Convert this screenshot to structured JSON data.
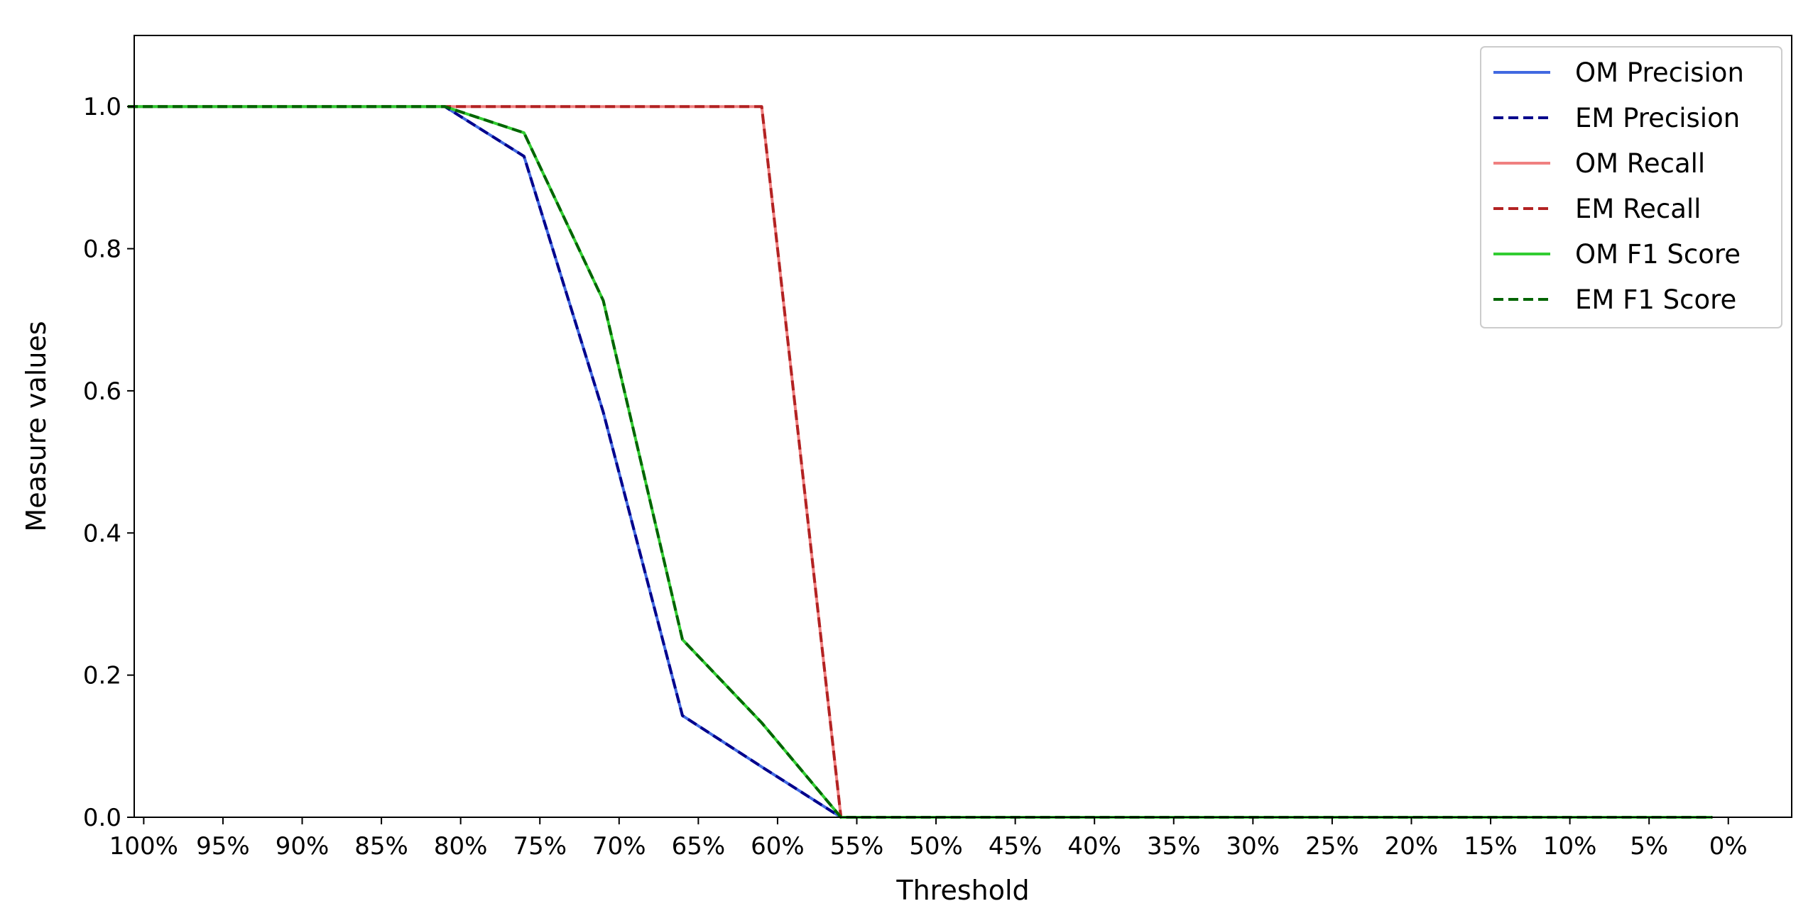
{
  "chart_data": {
    "type": "line",
    "title": "",
    "xlabel": "Threshold",
    "ylabel": "Measure values",
    "x_tick_labels": [
      "100%",
      "95%",
      "90%",
      "85%",
      "80%",
      "75%",
      "70%",
      "65%",
      "60%",
      "55%",
      "50%",
      "45%",
      "40%",
      "35%",
      "30%",
      "25%",
      "20%",
      "15%",
      "10%",
      "5%",
      "0%"
    ],
    "x_ticks": [
      100,
      95,
      90,
      85,
      80,
      75,
      70,
      65,
      60,
      55,
      50,
      45,
      40,
      35,
      30,
      25,
      20,
      15,
      10,
      5,
      0
    ],
    "xlim": [
      100.6,
      -4
    ],
    "y_ticks": [
      0.0,
      0.2,
      0.4,
      0.6,
      0.8,
      1.0
    ],
    "y_tick_labels": [
      "0.0",
      "0.2",
      "0.4",
      "0.6",
      "0.8",
      "1.0"
    ],
    "ylim": [
      0.0,
      1.1
    ],
    "x": [
      101,
      96,
      91,
      86,
      81,
      76,
      71,
      66,
      61,
      56,
      51,
      46,
      41,
      36,
      31,
      26,
      21,
      16,
      11,
      6,
      1
    ],
    "series": [
      {
        "name": "OM Precision",
        "color": "#4169e1",
        "style": "solid",
        "values": [
          1,
          1,
          1,
          1,
          1,
          0.93,
          0.57,
          0.143,
          0.071,
          0,
          0,
          0,
          0,
          0,
          0,
          0,
          0,
          0,
          0,
          0,
          0
        ]
      },
      {
        "name": "EM Precision",
        "color": "#00008b",
        "style": "dashed",
        "values": [
          1,
          1,
          1,
          1,
          1,
          0.93,
          0.57,
          0.143,
          0.071,
          0,
          0,
          0,
          0,
          0,
          0,
          0,
          0,
          0,
          0,
          0,
          0
        ]
      },
      {
        "name": "OM Recall",
        "color": "#f08080",
        "style": "solid",
        "values": [
          1,
          1,
          1,
          1,
          1,
          1,
          1,
          1,
          1,
          0,
          0,
          0,
          0,
          0,
          0,
          0,
          0,
          0,
          0,
          0,
          0
        ]
      },
      {
        "name": "EM Recall",
        "color": "#b22222",
        "style": "dashed",
        "values": [
          1,
          1,
          1,
          1,
          1,
          1,
          1,
          1,
          1,
          0,
          0,
          0,
          0,
          0,
          0,
          0,
          0,
          0,
          0,
          0,
          0
        ]
      },
      {
        "name": "OM F1 Score",
        "color": "#32cd32",
        "style": "solid",
        "values": [
          1,
          1,
          1,
          1,
          1,
          0.963,
          0.727,
          0.25,
          0.133,
          0,
          0,
          0,
          0,
          0,
          0,
          0,
          0,
          0,
          0,
          0,
          0
        ]
      },
      {
        "name": "EM F1 Score",
        "color": "#006400",
        "style": "dashed",
        "values": [
          1,
          1,
          1,
          1,
          1,
          0.963,
          0.727,
          0.25,
          0.133,
          0,
          0,
          0,
          0,
          0,
          0,
          0,
          0,
          0,
          0,
          0,
          0
        ]
      }
    ],
    "legend_position": "top-right",
    "grid": false
  }
}
